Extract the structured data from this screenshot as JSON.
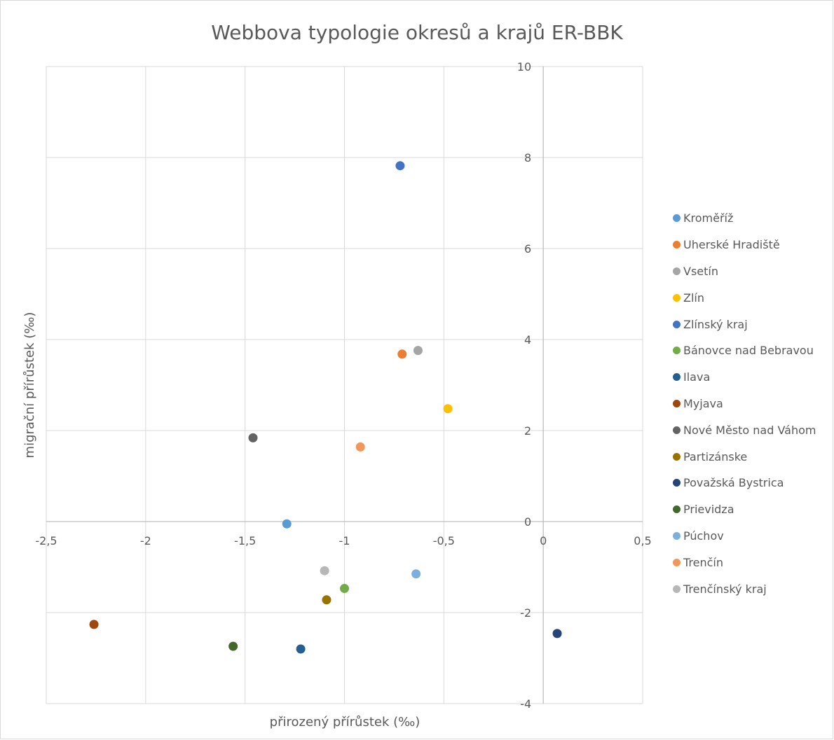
{
  "chart_data": {
    "type": "scatter",
    "title": "Webbova typologie okresů a krajů ER-BBK",
    "xlabel": "přirozený přírůstek (‰)",
    "ylabel": "migrační přírůstek (‰)",
    "xlim": [
      -2.5,
      0.5
    ],
    "ylim": [
      -4,
      10
    ],
    "x_ticks": [
      -2.5,
      -2,
      -1.5,
      -1,
      -0.5,
      0,
      0.5
    ],
    "y_ticks": [
      -4,
      -2,
      0,
      2,
      4,
      6,
      8,
      10
    ],
    "x_tick_labels": [
      "-2,5",
      "-2",
      "-1,5",
      "-1",
      "-0,5",
      "0",
      "0,5"
    ],
    "y_tick_labels": [
      "-4",
      "-2",
      "0",
      "2",
      "4",
      "6",
      "8",
      "10"
    ],
    "grid": true,
    "legend_position": "right",
    "series": [
      {
        "name": "Kroměříž",
        "color": "#5b9bd5",
        "x": -1.29,
        "y": -0.05
      },
      {
        "name": "Uherské Hradiště",
        "color": "#ed7d31",
        "x": -0.71,
        "y": 3.68
      },
      {
        "name": "Vsetín",
        "color": "#a5a5a5",
        "x": -0.63,
        "y": 3.76
      },
      {
        "name": "Zlín",
        "color": "#ffc000",
        "x": -0.48,
        "y": 2.48
      },
      {
        "name": "Zlínský kraj",
        "color": "#4472c4",
        "x": -0.72,
        "y": 7.82
      },
      {
        "name": "Bánovce nad Bebravou",
        "color": "#70ad47",
        "x": -1.0,
        "y": -1.47
      },
      {
        "name": "Ilava",
        "color": "#255e91",
        "x": -1.22,
        "y": -2.8
      },
      {
        "name": "Myjava",
        "color": "#9e480e",
        "x": -2.26,
        "y": -2.26
      },
      {
        "name": "Nové Město nad Váhom",
        "color": "#636363",
        "x": -1.46,
        "y": 1.84
      },
      {
        "name": "Partizánske",
        "color": "#997300",
        "x": -1.09,
        "y": -1.72
      },
      {
        "name": "Považská Bystrica",
        "color": "#264478",
        "x": 0.07,
        "y": -2.46
      },
      {
        "name": "Prievidza",
        "color": "#43682b",
        "x": -1.56,
        "y": -2.74
      },
      {
        "name": "Púchov",
        "color": "#7cafdd",
        "x": -0.64,
        "y": -1.15
      },
      {
        "name": "Trenčín",
        "color": "#f1975a",
        "x": -0.92,
        "y": 1.64
      },
      {
        "name": "Trenčínský kraj",
        "color": "#b7b7b7",
        "x": -1.1,
        "y": -1.08
      }
    ]
  }
}
